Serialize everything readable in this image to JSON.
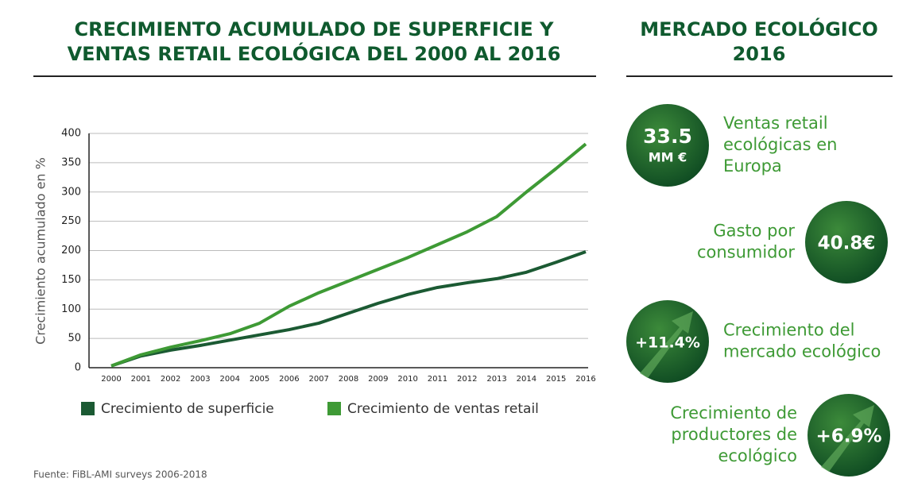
{
  "chart_data": {
    "type": "line",
    "title": "CRECIMIENTO ACUMULADO DE SUPERFICIE Y VENTAS RETAIL ECOLÓGICA DEL 2000 AL 2016",
    "y_label": "Crecimiento acumulado en %",
    "categories": [
      "2000",
      "2001",
      "2002",
      "2003",
      "2004",
      "2005",
      "2006",
      "2007",
      "2008",
      "2009",
      "2010",
      "2011",
      "2012",
      "2013",
      "2014",
      "2015",
      "2016"
    ],
    "series": [
      {
        "name": "Crecimiento de superficie",
        "color": "#1b5a33",
        "values": [
          3,
          20,
          30,
          38,
          47,
          56,
          65,
          76,
          93,
          110,
          125,
          137,
          145,
          152,
          163,
          180,
          198
        ]
      },
      {
        "name": "Crecimiento de ventas retail",
        "color": "#3e9a35",
        "values": [
          3,
          22,
          35,
          46,
          58,
          76,
          105,
          128,
          148,
          168,
          188,
          210,
          232,
          258,
          300,
          340,
          382
        ]
      }
    ],
    "ylim": [
      0,
      400
    ],
    "yticks": [
      0,
      50,
      100,
      150,
      200,
      250,
      300,
      350,
      400
    ],
    "grid": true,
    "source": "Fuente: FiBL-AMI surveys 2006-2018"
  },
  "panel": {
    "title": "MERCADO ECOLÓGICO 2016",
    "items": [
      {
        "value": "33.5",
        "unit": "MM €",
        "label": [
          "Ventas retail",
          "ecológicas en",
          "Europa"
        ]
      },
      {
        "value": "40.8€",
        "label": [
          "Gasto por",
          "consumidor"
        ]
      },
      {
        "value": "+11.4%",
        "label": [
          "Crecimiento del",
          "mercado ecológico"
        ]
      },
      {
        "value": "+6.9%",
        "label": [
          "Crecimiento de",
          "productores de",
          "ecológico"
        ]
      }
    ]
  }
}
